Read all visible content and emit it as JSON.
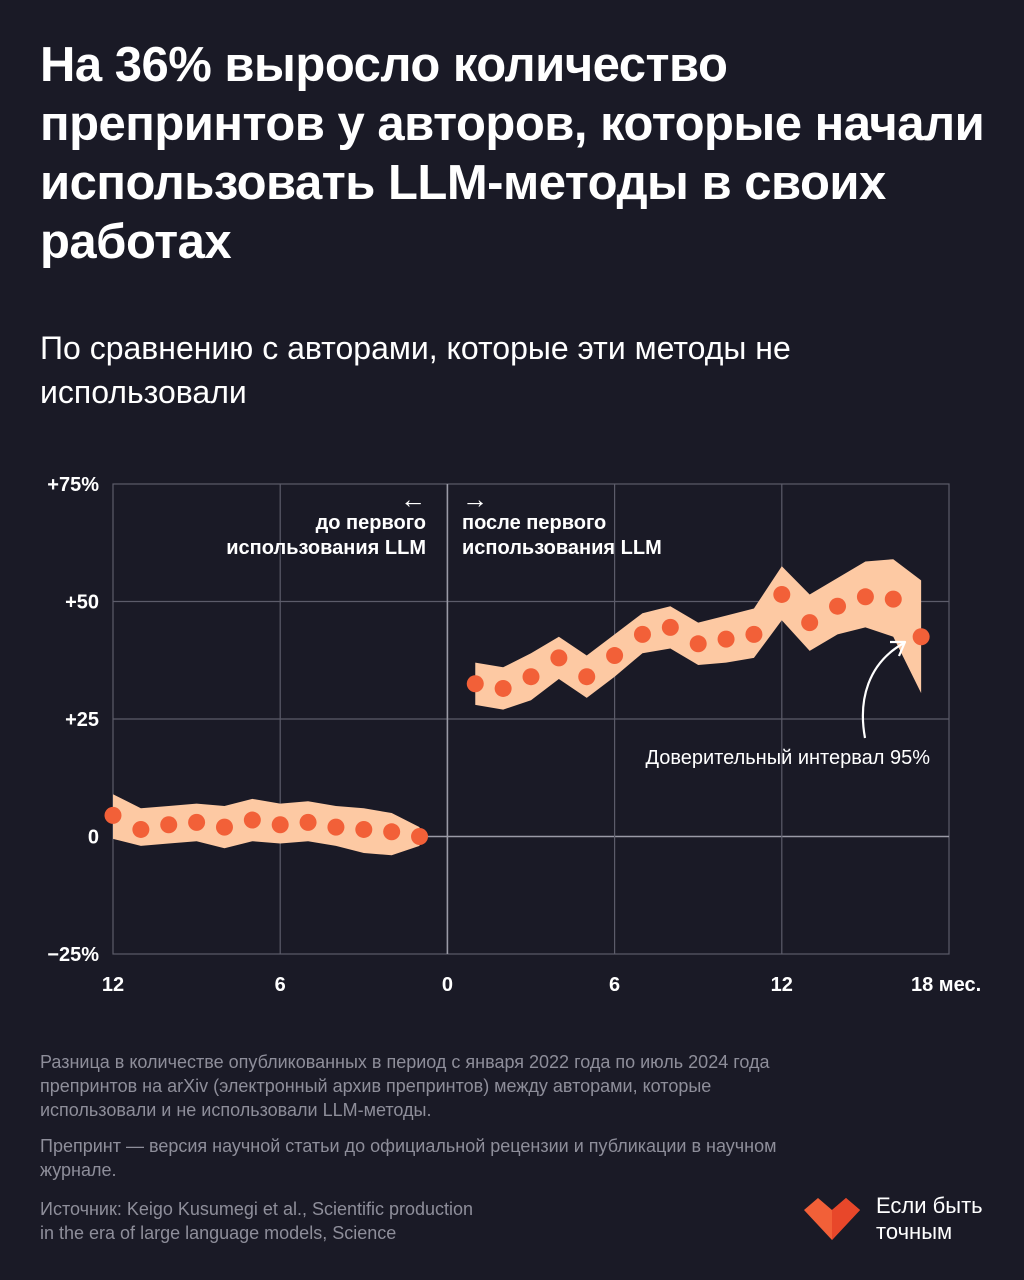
{
  "header": {
    "title": "На 36% выросло количество препринтов у авторов, которые начали использовать LLM-методы в своих работах",
    "subtitle": "По сравнению с авторами, которые эти методы не использовали"
  },
  "colors": {
    "background": "#1a1a26",
    "band": "#fdc9a3",
    "dot": "#f26038",
    "grid": "#5c5c6a",
    "muted": "#8e8e9a"
  },
  "chart_data": {
    "type": "scatter",
    "xlabel": "мес.",
    "xlim": [
      -12,
      18
    ],
    "ylim": [
      -25,
      75
    ],
    "y_ticks": [
      {
        "value": 75,
        "label": "+75%"
      },
      {
        "value": 50,
        "label": "+50"
      },
      {
        "value": 25,
        "label": "+25"
      },
      {
        "value": 0,
        "label": "0"
      },
      {
        "value": -25,
        "label": "−25%"
      }
    ],
    "x_ticks": [
      {
        "value": -12,
        "label": "12"
      },
      {
        "value": -6,
        "label": "6"
      },
      {
        "value": 0,
        "label": "0"
      },
      {
        "value": 6,
        "label": "6"
      },
      {
        "value": 12,
        "label": "12"
      },
      {
        "value": 18,
        "label": "18 мес."
      }
    ],
    "region_labels": {
      "before": {
        "arrow": "←",
        "text_line1": "до первого",
        "text_line2": "использования LLM"
      },
      "after": {
        "arrow": "→",
        "text_line1": "после первого",
        "text_line2": "использования LLM"
      }
    },
    "ci_label": "Доверительный интервал 95%",
    "series": [
      {
        "name": "до первого использования LLM",
        "x": [
          -12,
          -11,
          -10,
          -9,
          -8,
          -7,
          -6,
          -5,
          -4,
          -3,
          -2,
          -1
        ],
        "values": [
          4.5,
          1.5,
          2.5,
          3,
          2,
          3.5,
          2.5,
          3,
          2,
          1.5,
          1,
          0
        ],
        "ci_low": [
          -0.5,
          -2,
          -1.5,
          -1,
          -2.5,
          -1,
          -1.5,
          -1,
          -2,
          -3.5,
          -4,
          -2
        ],
        "ci_high": [
          9,
          6,
          6.5,
          7,
          6.5,
          8,
          7,
          7.5,
          6.5,
          6,
          5,
          2
        ]
      },
      {
        "name": "после первого использования LLM",
        "x": [
          1,
          2,
          3,
          4,
          5,
          6,
          7,
          8,
          9,
          10,
          11,
          12,
          13,
          14,
          15,
          16,
          17
        ],
        "values": [
          32.5,
          31.5,
          34,
          38,
          34,
          38.5,
          43,
          44.5,
          41,
          42,
          43,
          51.5,
          45.5,
          49,
          51,
          50.5,
          42.5
        ],
        "ci_low": [
          28,
          27,
          29,
          33.5,
          29.5,
          34,
          39,
          40,
          36.5,
          37,
          38,
          46,
          39.5,
          43,
          44.5,
          42.5,
          30.5
        ],
        "ci_high": [
          37,
          36,
          39,
          42.5,
          38.5,
          43,
          47.5,
          49,
          45.5,
          47,
          48.5,
          57.5,
          51.5,
          55,
          58.5,
          59,
          54.5
        ]
      }
    ]
  },
  "footer": {
    "note1": "Разница в количестве опубликованных в период с января 2022 года по июль 2024 года препринтов на arXiv (электронный архив препринтов) между авторами, которые использовали и не использовали LLM-методы.",
    "note2": "Препринт — версия научной статьи до официальной рецензии и публикации в научном журнале.",
    "source_line1": "Источник: Keigo Kusumegi et al., Scientific production",
    "source_line2": "in the era of large language models, Science"
  },
  "logo": {
    "icon": "heart-logo-icon",
    "line1": "Если быть",
    "line2": "точным"
  }
}
